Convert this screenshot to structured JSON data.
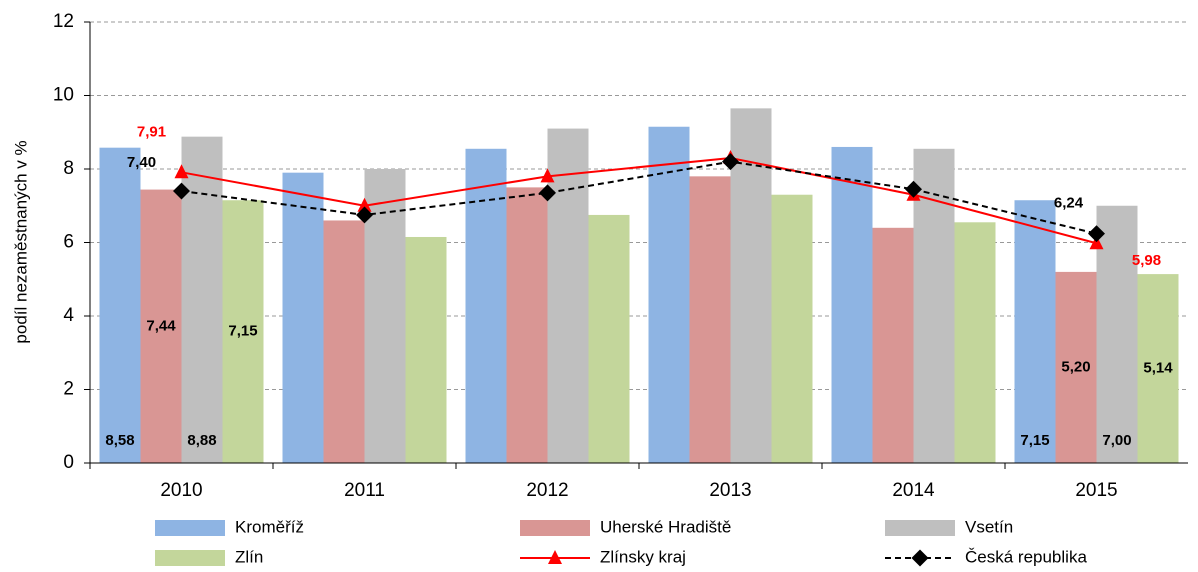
{
  "chart_data": {
    "type": "bar",
    "y_label": "podíl nezaměstnaných v %",
    "categories": [
      "2010",
      "2011",
      "2012",
      "2013",
      "2014",
      "2015"
    ],
    "ylim": [
      0,
      12
    ],
    "yticks": [
      0,
      2,
      4,
      6,
      8,
      10,
      12
    ],
    "grid": true,
    "series": [
      {
        "name": "Kroměříž",
        "type": "bar",
        "color": "#8eb4e3",
        "values": [
          8.58,
          7.9,
          8.55,
          9.15,
          8.6,
          7.15
        ],
        "value_labels": [
          "8,58",
          null,
          null,
          null,
          null,
          "7,15"
        ]
      },
      {
        "name": "Uherské Hradiště",
        "type": "bar",
        "color": "#d99694",
        "values": [
          7.44,
          6.6,
          7.5,
          7.8,
          6.4,
          5.2
        ],
        "value_labels": [
          "7,44",
          null,
          null,
          null,
          null,
          "5,20"
        ]
      },
      {
        "name": "Vsetín",
        "type": "bar",
        "color": "#bfbfbf",
        "values": [
          8.88,
          8.0,
          9.1,
          9.65,
          8.55,
          7.0
        ],
        "value_labels": [
          "8,88",
          null,
          null,
          null,
          null,
          "7,00"
        ]
      },
      {
        "name": "Zlín",
        "type": "bar",
        "color": "#c3d69b",
        "values": [
          7.15,
          6.15,
          6.75,
          7.3,
          6.55,
          5.14
        ],
        "value_labels": [
          "7,15",
          null,
          null,
          null,
          null,
          "5,14"
        ]
      },
      {
        "name": "Zlínsky kraj",
        "type": "line",
        "color": "#ff0000",
        "values": [
          7.91,
          7.0,
          7.8,
          8.3,
          7.3,
          5.98
        ],
        "value_labels": [
          "7,91",
          null,
          null,
          null,
          null,
          "5,98"
        ]
      },
      {
        "name": "Česká republika",
        "type": "line",
        "dashed": true,
        "color": "#000000",
        "values": [
          7.4,
          6.75,
          7.35,
          8.2,
          7.45,
          6.24
        ],
        "value_labels": [
          "7,40",
          null,
          null,
          null,
          null,
          "6,24"
        ]
      }
    ]
  }
}
